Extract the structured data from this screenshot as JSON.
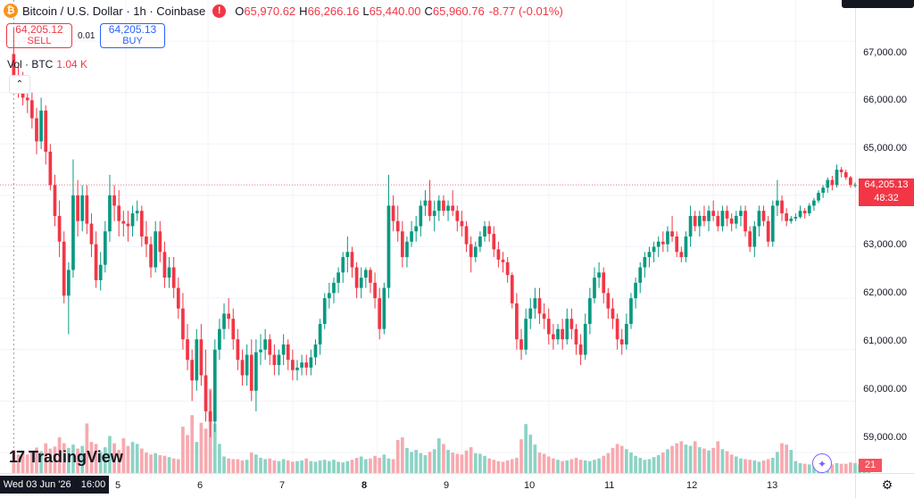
{
  "header": {
    "symbol_title": "Bitcoin / U.S. Dollar · 1h · Coinbase",
    "btc_glyph": "₿",
    "alert_glyph": "!",
    "ohlc": [
      {
        "key": "O",
        "value": "65,970.62"
      },
      {
        "key": "H",
        "value": "66,266.16"
      },
      {
        "key": "L",
        "value": "65,440.00"
      },
      {
        "key": "C",
        "value": "65,960.76"
      }
    ],
    "change": "-8.77 (-0.01%)"
  },
  "trade": {
    "sell_price": "64,205.12",
    "sell_label": "SELL",
    "spread": "0.01",
    "buy_price": "64,205.13",
    "buy_label": "BUY"
  },
  "volume_legend": {
    "label": "Vol · BTC",
    "value": "1.04 K"
  },
  "collapse_glyph": "⌃",
  "price_axis": {
    "ticks": [
      "67,000.00",
      "66,000.00",
      "65,000.00",
      "63,000.00",
      "62,000.00",
      "61,000.00",
      "60,000.00",
      "59,000.00"
    ],
    "last_price": "64,205.13",
    "countdown": "48:32",
    "volume_last": "21"
  },
  "time_axis": {
    "cursor_date": "Wed 03 Jun '26",
    "cursor_time": "16:00",
    "labels": [
      "5",
      "6",
      "7",
      "8",
      "9",
      "10",
      "11",
      "12",
      "13"
    ]
  },
  "branding": {
    "mark": "17",
    "text": "TradingView"
  },
  "settings_glyph": "⚙",
  "spark_glyph": "✦",
  "colors": {
    "up": "#089981",
    "down": "#f23645",
    "up_vol": "#8cd3c5",
    "down_vol": "#f7a9af",
    "last_line": "#f23645"
  },
  "chart_data": {
    "type": "candlestick",
    "title": "Bitcoin / U.S. Dollar · 1h · Coinbase",
    "y_range": [
      58600,
      67800
    ],
    "x_range": [
      -3,
      184
    ],
    "last_price": 64205.13,
    "grid": true,
    "date_labels": [
      {
        "label": "5",
        "x": 24.5
      },
      {
        "label": "6",
        "x": 42.5
      },
      {
        "label": "7",
        "x": 61
      },
      {
        "label": "8",
        "x": 79.5
      },
      {
        "label": "9",
        "x": 98
      },
      {
        "label": "10",
        "x": 117
      },
      {
        "label": "11",
        "x": 134
      },
      {
        "label": "12",
        "x": 153
      },
      {
        "label": "13",
        "x": 171
      }
    ],
    "candles": [
      [
        66750,
        67250,
        66100,
        66250
      ],
      [
        66250,
        66500,
        65900,
        66100
      ],
      [
        66100,
        66400,
        65750,
        65900
      ],
      [
        65900,
        66200,
        65600,
        65850
      ],
      [
        65850,
        66000,
        65300,
        65500
      ],
      [
        65500,
        65700,
        64800,
        65050
      ],
      [
        65050,
        65900,
        64900,
        65650
      ],
      [
        65650,
        65750,
        64600,
        64850
      ],
      [
        64850,
        65000,
        64100,
        64200
      ],
      [
        64200,
        64400,
        63400,
        63600
      ],
      [
        63600,
        63900,
        62800,
        63100
      ],
      [
        63100,
        63300,
        61900,
        62050
      ],
      [
        62050,
        62700,
        61300,
        62550
      ],
      [
        62550,
        64700,
        62400,
        64000
      ],
      [
        64000,
        64300,
        63200,
        63500
      ],
      [
        63500,
        64200,
        63300,
        64000
      ],
      [
        64000,
        64200,
        63250,
        63450
      ],
      [
        63450,
        63650,
        62800,
        63050
      ],
      [
        63050,
        63300,
        62200,
        62350
      ],
      [
        62350,
        62900,
        62150,
        62650
      ],
      [
        62650,
        63500,
        62500,
        63300
      ],
      [
        63300,
        64400,
        63100,
        64000
      ],
      [
        64000,
        64200,
        63500,
        63800
      ],
      [
        63800,
        64100,
        63200,
        63500
      ],
      [
        63500,
        63700,
        63200,
        63450
      ],
      [
        63450,
        63700,
        63100,
        63400
      ],
      [
        63400,
        63800,
        63200,
        63650
      ],
      [
        63650,
        63900,
        63500,
        63700
      ],
      [
        63700,
        63800,
        63000,
        63200
      ],
      [
        63200,
        63500,
        62800,
        63050
      ],
      [
        63050,
        63200,
        62400,
        62600
      ],
      [
        62600,
        63500,
        62500,
        63300
      ],
      [
        63300,
        63500,
        62700,
        62900
      ],
      [
        62900,
        63100,
        62200,
        62400
      ],
      [
        62400,
        62800,
        62200,
        62600
      ],
      [
        62600,
        62800,
        62000,
        62200
      ],
      [
        62200,
        62400,
        61600,
        61800
      ],
      [
        61800,
        62100,
        61000,
        61200
      ],
      [
        61200,
        61500,
        60600,
        60800
      ],
      [
        60800,
        61000,
        60000,
        60400
      ],
      [
        60400,
        61400,
        60200,
        61200
      ],
      [
        61200,
        61500,
        60300,
        60500
      ],
      [
        60500,
        61000,
        59600,
        59800
      ],
      [
        59800,
        60200,
        59300,
        59600
      ],
      [
        59600,
        61200,
        59400,
        61000
      ],
      [
        61000,
        61600,
        60800,
        61400
      ],
      [
        61400,
        61900,
        61200,
        61700
      ],
      [
        61700,
        62000,
        61400,
        61600
      ],
      [
        61600,
        61800,
        61000,
        61200
      ],
      [
        61200,
        61400,
        60600,
        60800
      ],
      [
        60800,
        61000,
        60300,
        60500
      ],
      [
        60500,
        61100,
        60300,
        60900
      ],
      [
        60900,
        61200,
        60000,
        60200
      ],
      [
        60200,
        61200,
        59800,
        60950
      ],
      [
        60950,
        61300,
        60700,
        61000
      ],
      [
        61000,
        61400,
        60800,
        61200
      ],
      [
        61200,
        61300,
        60700,
        60900
      ],
      [
        60900,
        61100,
        60500,
        60700
      ],
      [
        60700,
        61000,
        60500,
        60900
      ],
      [
        60900,
        61300,
        60700,
        61100
      ],
      [
        61100,
        61200,
        60600,
        60800
      ],
      [
        60800,
        61000,
        60400,
        60600
      ],
      [
        60600,
        60800,
        60400,
        60650
      ],
      [
        60650,
        60900,
        60500,
        60750
      ],
      [
        60750,
        60900,
        60500,
        60650
      ],
      [
        60650,
        61000,
        60500,
        60850
      ],
      [
        60850,
        61200,
        60700,
        61100
      ],
      [
        61100,
        61600,
        60900,
        61500
      ],
      [
        61500,
        62100,
        61400,
        62000
      ],
      [
        62000,
        62300,
        61800,
        62100
      ],
      [
        62100,
        62400,
        61900,
        62300
      ],
      [
        62300,
        62600,
        62100,
        62500
      ],
      [
        62500,
        62900,
        62300,
        62800
      ],
      [
        62800,
        63200,
        62500,
        62900
      ],
      [
        62900,
        63000,
        62400,
        62600
      ],
      [
        62600,
        62700,
        62000,
        62200
      ],
      [
        62200,
        62600,
        62000,
        62400
      ],
      [
        62400,
        62600,
        62200,
        62550
      ],
      [
        62550,
        62600,
        62100,
        62300
      ],
      [
        62300,
        62500,
        61800,
        62000
      ],
      [
        62000,
        62200,
        61200,
        61400
      ],
      [
        61400,
        62300,
        61300,
        62200
      ],
      [
        62200,
        64400,
        62000,
        63800
      ],
      [
        63800,
        64000,
        63300,
        63500
      ],
      [
        63500,
        63800,
        63100,
        63300
      ],
      [
        63300,
        63500,
        62600,
        62800
      ],
      [
        62800,
        63200,
        62600,
        63100
      ],
      [
        63100,
        63500,
        63000,
        63300
      ],
      [
        63300,
        63600,
        63100,
        63400
      ],
      [
        63400,
        63900,
        63200,
        63800
      ],
      [
        63800,
        64100,
        63600,
        63900
      ],
      [
        63900,
        64300,
        63500,
        63600
      ],
      [
        63600,
        63900,
        63300,
        63700
      ],
      [
        63700,
        64000,
        63500,
        63900
      ],
      [
        63900,
        64000,
        63600,
        63700
      ],
      [
        63700,
        63900,
        63500,
        63800
      ],
      [
        63800,
        64100,
        63600,
        63700
      ],
      [
        63700,
        63800,
        63300,
        63500
      ],
      [
        63500,
        63700,
        63200,
        63400
      ],
      [
        63400,
        63500,
        62900,
        63050
      ],
      [
        63050,
        63200,
        62500,
        62800
      ],
      [
        62800,
        63100,
        62700,
        63000
      ],
      [
        63000,
        63300,
        62900,
        63200
      ],
      [
        63200,
        63500,
        63100,
        63400
      ],
      [
        63400,
        63500,
        63100,
        63250
      ],
      [
        63250,
        63400,
        62800,
        62950
      ],
      [
        62950,
        63100,
        62600,
        62750
      ],
      [
        62750,
        62900,
        62500,
        62700
      ],
      [
        62700,
        62800,
        62300,
        62450
      ],
      [
        62450,
        62500,
        61800,
        61900
      ],
      [
        61900,
        62100,
        61000,
        61200
      ],
      [
        61200,
        61400,
        60800,
        61000
      ],
      [
        61000,
        61800,
        60900,
        61600
      ],
      [
        61600,
        62000,
        61400,
        61800
      ],
      [
        61800,
        62200,
        61600,
        62000
      ],
      [
        62000,
        62200,
        61500,
        61700
      ],
      [
        61700,
        61900,
        61400,
        61600
      ],
      [
        61600,
        61800,
        61100,
        61300
      ],
      [
        61300,
        61500,
        61000,
        61200
      ],
      [
        61200,
        61500,
        61100,
        61400
      ],
      [
        61400,
        61600,
        61000,
        61200
      ],
      [
        61200,
        61800,
        61100,
        61600
      ],
      [
        61600,
        61800,
        61200,
        61400
      ],
      [
        61400,
        61500,
        60900,
        61100
      ],
      [
        61100,
        61300,
        60700,
        60900
      ],
      [
        60900,
        61700,
        60800,
        61500
      ],
      [
        61500,
        62200,
        61300,
        62000
      ],
      [
        62000,
        62600,
        61900,
        62400
      ],
      [
        62400,
        62700,
        62200,
        62500
      ],
      [
        62500,
        62600,
        61900,
        62100
      ],
      [
        62100,
        62200,
        61600,
        61800
      ],
      [
        61800,
        62000,
        61400,
        61600
      ],
      [
        61600,
        61700,
        61000,
        61200
      ],
      [
        61200,
        61400,
        60900,
        61100
      ],
      [
        61100,
        61700,
        61000,
        61500
      ],
      [
        61500,
        62100,
        61400,
        62000
      ],
      [
        62000,
        62400,
        61800,
        62300
      ],
      [
        62300,
        62700,
        62100,
        62600
      ],
      [
        62600,
        62900,
        62400,
        62800
      ],
      [
        62800,
        63000,
        62600,
        62900
      ],
      [
        62900,
        63100,
        62700,
        63000
      ],
      [
        63000,
        63200,
        62800,
        63100
      ],
      [
        63100,
        63300,
        62900,
        63050
      ],
      [
        63050,
        63400,
        62900,
        63300
      ],
      [
        63300,
        63600,
        63100,
        63200
      ],
      [
        63200,
        63300,
        62800,
        62900
      ],
      [
        62900,
        63000,
        62700,
        62800
      ],
      [
        62800,
        63300,
        62700,
        63200
      ],
      [
        63200,
        63800,
        63000,
        63600
      ],
      [
        63600,
        63700,
        63300,
        63400
      ],
      [
        63400,
        63700,
        63200,
        63600
      ],
      [
        63600,
        63800,
        63400,
        63500
      ],
      [
        63500,
        63800,
        63300,
        63700
      ],
      [
        63700,
        63900,
        63500,
        63600
      ],
      [
        63600,
        63700,
        63300,
        63400
      ],
      [
        63400,
        63800,
        63300,
        63700
      ],
      [
        63700,
        63800,
        63400,
        63550
      ],
      [
        63550,
        63650,
        63300,
        63450
      ],
      [
        63450,
        63700,
        63350,
        63600
      ],
      [
        63600,
        63800,
        63400,
        63700
      ],
      [
        63700,
        63800,
        63200,
        63300
      ],
      [
        63300,
        63400,
        62900,
        63000
      ],
      [
        63000,
        63500,
        62800,
        63400
      ],
      [
        63400,
        63800,
        63200,
        63700
      ],
      [
        63700,
        63800,
        63400,
        63500
      ],
      [
        63500,
        63600,
        63000,
        63100
      ],
      [
        63100,
        63900,
        63000,
        63800
      ],
      [
        63800,
        64300,
        63600,
        63900
      ],
      [
        63900,
        64000,
        63500,
        63650
      ],
      [
        63650,
        63750,
        63400,
        63500
      ],
      [
        63500,
        63600,
        63450,
        63550
      ],
      [
        63550,
        63650,
        63500,
        63580
      ],
      [
        63580,
        63800,
        63550,
        63700
      ],
      [
        63700,
        63750,
        63550,
        63650
      ],
      [
        63650,
        63850,
        63600,
        63800
      ],
      [
        63800,
        63950,
        63700,
        63900
      ],
      [
        63900,
        64100,
        63850,
        64050
      ],
      [
        64050,
        64200,
        63950,
        64150
      ],
      [
        64150,
        64350,
        64050,
        64300
      ],
      [
        64300,
        64380,
        64100,
        64200
      ],
      [
        64200,
        64600,
        64150,
        64500
      ],
      [
        64500,
        64550,
        64350,
        64450
      ],
      [
        64450,
        64500,
        64300,
        64350
      ],
      [
        64350,
        64380,
        64150,
        64200
      ],
      [
        64200,
        64250,
        64150,
        64205
      ]
    ],
    "volumes": [
      700,
      560,
      620,
      560,
      640,
      770,
      660,
      900,
      740,
      800,
      1080,
      900,
      760,
      860,
      740,
      820,
      1500,
      940,
      880,
      640,
      780,
      1120,
      900,
      700,
      1050,
      820,
      940,
      880,
      740,
      620,
      560,
      600,
      540,
      520,
      480,
      440,
      420,
      1400,
      1150,
      1750,
      940,
      1520,
      1340,
      2550,
      1500,
      880,
      500,
      440,
      420,
      420,
      380,
      400,
      620,
      560,
      460,
      420,
      440,
      380,
      360,
      420,
      380,
      340,
      360,
      380,
      440,
      360,
      340,
      380,
      400,
      360,
      400,
      340,
      320,
      360,
      400,
      460,
      500,
      420,
      440,
      520,
      460,
      560,
      440,
      420,
      1000,
      1080,
      760,
      640,
      700,
      600,
      540,
      640,
      720,
      1050,
      880,
      700,
      620,
      580,
      560,
      680,
      780,
      600,
      580,
      520,
      440,
      400,
      360,
      340,
      380,
      420,
      460,
      1020,
      1480,
      1160,
      860,
      620,
      580,
      500,
      440,
      400,
      360,
      380,
      420,
      460,
      400,
      380,
      360,
      400,
      440,
      520,
      600,
      760,
      880,
      820,
      720,
      620,
      520,
      460,
      400,
      420,
      480,
      540,
      620,
      720,
      820,
      900,
      960,
      860,
      820,
      960,
      780,
      740,
      680,
      760,
      960,
      720,
      660,
      560,
      500,
      440,
      420,
      400,
      380,
      340,
      380,
      420,
      460,
      640,
      900,
      860,
      700,
      360,
      300,
      280,
      260,
      260,
      240,
      260,
      280,
      260,
      300,
      280,
      280,
      320,
      300,
      260,
      300,
      210
    ],
    "volume_max": 2700
  }
}
